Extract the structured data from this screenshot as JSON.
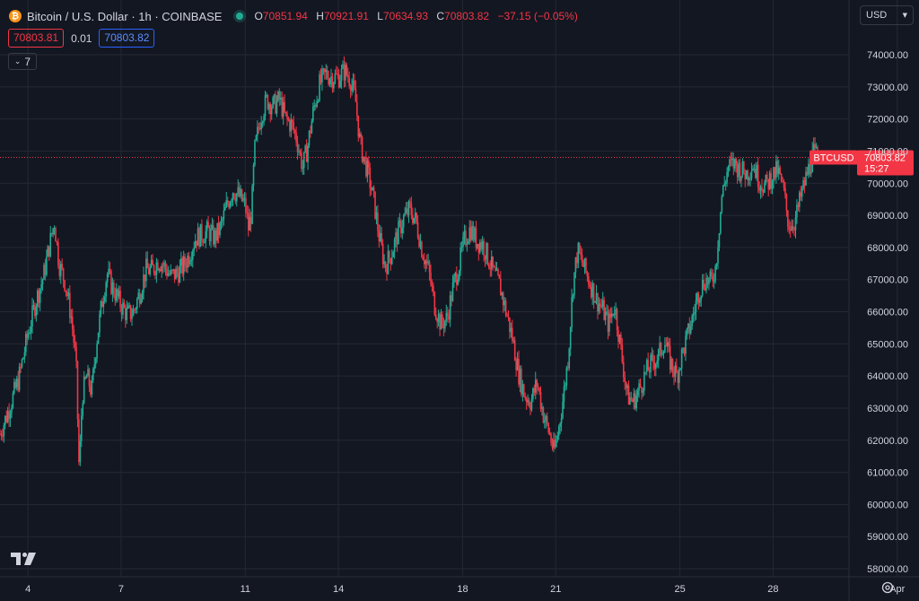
{
  "header": {
    "coin_glyph": "₿",
    "symbol_title": "Bitcoin / U.S. Dollar · 1h · COINBASE",
    "ohlc": {
      "open_label": "O",
      "open": "70851.94",
      "high_label": "H",
      "high": "70921.91",
      "low_label": "L",
      "low": "70634.93",
      "close_label": "C",
      "close": "70803.82",
      "change": "−37.15 (−0.05%)"
    }
  },
  "trade": {
    "bid": "70803.81",
    "spread": "0.01",
    "ask": "70803.82"
  },
  "indicators_count": "7",
  "currency": "USD",
  "colors": {
    "background": "#131722",
    "up": "#22ab94",
    "down": "#f23645",
    "grid": "#242832",
    "text": "#d1d4dc"
  },
  "icons": [
    "bitcoin-icon",
    "live-status-icon",
    "chevron-down-icon",
    "tradingview-logo-icon",
    "settings-gear-icon"
  ],
  "chart_data": {
    "type": "candlestick",
    "symbol": "BTCUSD",
    "interval": "1h",
    "ylim": [
      57900,
      74500
    ],
    "y_ticks": [
      "58000.00",
      "59000.00",
      "60000.00",
      "61000.00",
      "62000.00",
      "63000.00",
      "64000.00",
      "65000.00",
      "66000.00",
      "67000.00",
      "68000.00",
      "69000.00",
      "70000.00",
      "71000.00",
      "72000.00",
      "73000.00",
      "74000.00"
    ],
    "x_ticks": [
      {
        "label": "4",
        "day": 4
      },
      {
        "label": "7",
        "day": 7
      },
      {
        "label": "11",
        "day": 11
      },
      {
        "label": "14",
        "day": 14
      },
      {
        "label": "18",
        "day": 18
      },
      {
        "label": "21",
        "day": 21
      },
      {
        "label": "25",
        "day": 25
      },
      {
        "label": "28",
        "day": 28
      },
      {
        "label": "Apr",
        "day": 32
      }
    ],
    "x_range_days": [
      3.1,
      32.7
    ],
    "last_price": {
      "symbol_label": "BTCUSD",
      "price": "70803.82",
      "countdown": "15:27",
      "value": 70803.82
    },
    "close_path": [
      [
        3.1,
        62200
      ],
      [
        3.4,
        63000
      ],
      [
        3.7,
        63900
      ],
      [
        4.0,
        65300
      ],
      [
        4.25,
        66300
      ],
      [
        4.5,
        67100
      ],
      [
        4.7,
        68100
      ],
      [
        4.85,
        68800
      ],
      [
        5.0,
        67500
      ],
      [
        5.2,
        66900
      ],
      [
        5.4,
        65800
      ],
      [
        5.55,
        64400
      ],
      [
        5.65,
        61000
      ],
      [
        5.75,
        63400
      ],
      [
        5.9,
        64000
      ],
      [
        6.05,
        63500
      ],
      [
        6.2,
        65000
      ],
      [
        6.4,
        66400
      ],
      [
        6.55,
        67200
      ],
      [
        6.7,
        66800
      ],
      [
        6.85,
        66500
      ],
      [
        7.0,
        66200
      ],
      [
        7.2,
        65900
      ],
      [
        7.4,
        66000
      ],
      [
        7.6,
        66600
      ],
      [
        7.8,
        67300
      ],
      [
        8.0,
        67300
      ],
      [
        8.2,
        67600
      ],
      [
        8.4,
        67400
      ],
      [
        8.6,
        67100
      ],
      [
        8.8,
        67200
      ],
      [
        9.0,
        67400
      ],
      [
        9.2,
        67800
      ],
      [
        9.4,
        68300
      ],
      [
        9.6,
        68400
      ],
      [
        9.8,
        68500
      ],
      [
        10.0,
        68300
      ],
      [
        10.2,
        68600
      ],
      [
        10.4,
        69300
      ],
      [
        10.6,
        69800
      ],
      [
        10.8,
        69600
      ],
      [
        11.0,
        69300
      ],
      [
        11.1,
        68600
      ],
      [
        11.2,
        69100
      ],
      [
        11.3,
        71000
      ],
      [
        11.5,
        72100
      ],
      [
        11.7,
        72600
      ],
      [
        11.9,
        72400
      ],
      [
        12.1,
        72600
      ],
      [
        12.3,
        72000
      ],
      [
        12.5,
        71800
      ],
      [
        12.65,
        71400
      ],
      [
        12.85,
        70500
      ],
      [
        13.0,
        71100
      ],
      [
        13.2,
        72300
      ],
      [
        13.4,
        73100
      ],
      [
        13.6,
        73400
      ],
      [
        13.8,
        73300
      ],
      [
        14.0,
        73300
      ],
      [
        14.2,
        73500
      ],
      [
        14.4,
        73200
      ],
      [
        14.55,
        72600
      ],
      [
        14.7,
        71200
      ],
      [
        14.9,
        70500
      ],
      [
        15.0,
        70100
      ],
      [
        15.15,
        69400
      ],
      [
        15.3,
        68400
      ],
      [
        15.5,
        67400
      ],
      [
        15.7,
        67800
      ],
      [
        15.9,
        68400
      ],
      [
        16.1,
        68900
      ],
      [
        16.3,
        69200
      ],
      [
        16.5,
        68800
      ],
      [
        16.7,
        67900
      ],
      [
        16.9,
        67300
      ],
      [
        17.1,
        66200
      ],
      [
        17.3,
        65600
      ],
      [
        17.5,
        65800
      ],
      [
        17.7,
        66800
      ],
      [
        17.9,
        67500
      ],
      [
        18.05,
        68200
      ],
      [
        18.25,
        68600
      ],
      [
        18.45,
        68200
      ],
      [
        18.65,
        68100
      ],
      [
        18.85,
        67600
      ],
      [
        19.0,
        67200
      ],
      [
        19.2,
        66800
      ],
      [
        19.4,
        66000
      ],
      [
        19.6,
        65200
      ],
      [
        19.8,
        64100
      ],
      [
        20.0,
        63400
      ],
      [
        20.2,
        63200
      ],
      [
        20.4,
        63800
      ],
      [
        20.6,
        62800
      ],
      [
        20.8,
        62200
      ],
      [
        20.95,
        61600
      ],
      [
        21.1,
        62400
      ],
      [
        21.25,
        63400
      ],
      [
        21.4,
        64600
      ],
      [
        21.55,
        66800
      ],
      [
        21.7,
        67900
      ],
      [
        21.9,
        67400
      ],
      [
        22.1,
        66900
      ],
      [
        22.3,
        66400
      ],
      [
        22.5,
        66100
      ],
      [
        22.7,
        65600
      ],
      [
        22.9,
        66200
      ],
      [
        23.1,
        64800
      ],
      [
        23.3,
        63400
      ],
      [
        23.5,
        63200
      ],
      [
        23.7,
        63600
      ],
      [
        23.9,
        64100
      ],
      [
        24.1,
        64400
      ],
      [
        24.3,
        64600
      ],
      [
        24.5,
        65100
      ],
      [
        24.7,
        64400
      ],
      [
        24.9,
        64000
      ],
      [
        25.05,
        64600
      ],
      [
        25.2,
        65100
      ],
      [
        25.4,
        65800
      ],
      [
        25.6,
        66600
      ],
      [
        25.8,
        67000
      ],
      [
        26.0,
        66900
      ],
      [
        26.15,
        67400
      ],
      [
        26.35,
        69600
      ],
      [
        26.55,
        70500
      ],
      [
        26.75,
        70600
      ],
      [
        26.95,
        70400
      ],
      [
        27.15,
        70300
      ],
      [
        27.35,
        70600
      ],
      [
        27.55,
        70100
      ],
      [
        27.75,
        69900
      ],
      [
        27.95,
        70200
      ],
      [
        28.15,
        70400
      ],
      [
        28.35,
        69700
      ],
      [
        28.5,
        68700
      ],
      [
        28.7,
        68800
      ],
      [
        28.9,
        69600
      ],
      [
        29.1,
        70300
      ],
      [
        29.3,
        70900
      ],
      [
        29.5,
        70800
      ]
    ]
  }
}
